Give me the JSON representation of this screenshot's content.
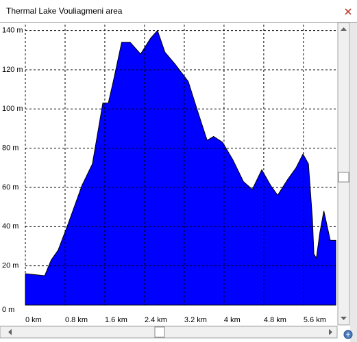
{
  "window": {
    "title": "Thermal Lake Vouliagmeni area"
  },
  "chart_data": {
    "type": "area",
    "color": "#0000ff",
    "grid": true,
    "x": [
      0,
      0.39,
      0.52,
      0.66,
      0.87,
      1.14,
      1.35,
      1.56,
      1.67,
      1.77,
      1.94,
      2.11,
      2.32,
      2.52,
      2.66,
      2.81,
      3.01,
      3.28,
      3.48,
      3.66,
      3.79,
      3.97,
      4.18,
      4.39,
      4.57,
      4.76,
      4.94,
      5.08,
      5.28,
      5.45,
      5.59,
      5.7,
      5.78,
      5.81,
      5.86,
      5.93,
      6.01,
      6.14,
      6.25
    ],
    "values": [
      16,
      15,
      23,
      28,
      42,
      61,
      72,
      103,
      103,
      114,
      134,
      134,
      128,
      136,
      140,
      129,
      123,
      114,
      98,
      84,
      86,
      83,
      74,
      63,
      59,
      69,
      61,
      56,
      64,
      70,
      77,
      72,
      44,
      26,
      24,
      37,
      48,
      33,
      33
    ],
    "xlim": [
      0,
      6.25
    ],
    "ylim": [
      0,
      143
    ],
    "xticks": [
      {
        "value": 0,
        "label": "0 km"
      },
      {
        "value": 0.8,
        "label": "0.8 km"
      },
      {
        "value": 1.6,
        "label": "1.6 km"
      },
      {
        "value": 2.4,
        "label": "2.4 km"
      },
      {
        "value": 3.2,
        "label": "3.2 km"
      },
      {
        "value": 4,
        "label": "4 km"
      },
      {
        "value": 4.8,
        "label": "4.8 km"
      },
      {
        "value": 5.6,
        "label": "5.6 km"
      }
    ],
    "yticks": [
      {
        "value": 0,
        "label": "0 m"
      },
      {
        "value": 20,
        "label": "20 m"
      },
      {
        "value": 40,
        "label": "40 m"
      },
      {
        "value": 60,
        "label": "60 m"
      },
      {
        "value": 80,
        "label": "80 m"
      },
      {
        "value": 100,
        "label": "100 m"
      },
      {
        "value": 120,
        "label": "120 m"
      },
      {
        "value": 140,
        "label": "140 m"
      }
    ]
  }
}
